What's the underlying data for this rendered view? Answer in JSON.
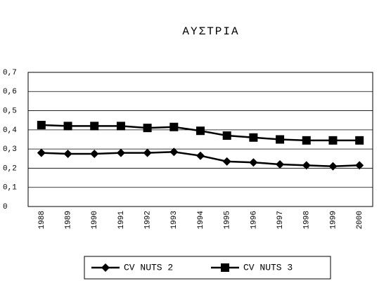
{
  "chart_data": {
    "type": "line",
    "title": "ΑΥΣΤΡΙΑ",
    "categories": [
      "1988",
      "1989",
      "1990",
      "1991",
      "1992",
      "1993",
      "1994",
      "1995",
      "1996",
      "1997",
      "1998",
      "1999",
      "2000"
    ],
    "series": [
      {
        "name": "CV NUTS 2",
        "color": "#000000",
        "marker": "diamond",
        "values": [
          0.28,
          0.275,
          0.275,
          0.28,
          0.28,
          0.285,
          0.265,
          0.235,
          0.23,
          0.22,
          0.215,
          0.21,
          0.215
        ]
      },
      {
        "name": "CV NUTS 3",
        "color": "#000000",
        "marker": "square",
        "values": [
          0.425,
          0.42,
          0.42,
          0.42,
          0.41,
          0.415,
          0.395,
          0.37,
          0.36,
          0.35,
          0.345,
          0.345,
          0.345
        ]
      }
    ],
    "ylim": [
      0,
      0.7
    ],
    "yticks": [
      0,
      {
        "value": 0.1,
        "label": "0,1"
      },
      {
        "value": 0.2,
        "label": "0,2"
      },
      {
        "value": 0.3,
        "label": "0,3"
      },
      {
        "value": 0.4,
        "label": "0,4"
      },
      {
        "value": 0.5,
        "label": "0,5"
      },
      {
        "value": 0.6,
        "label": "0,6"
      },
      {
        "value": 0.7,
        "label": "0,7"
      }
    ],
    "grid": true,
    "legend": "bottom"
  }
}
